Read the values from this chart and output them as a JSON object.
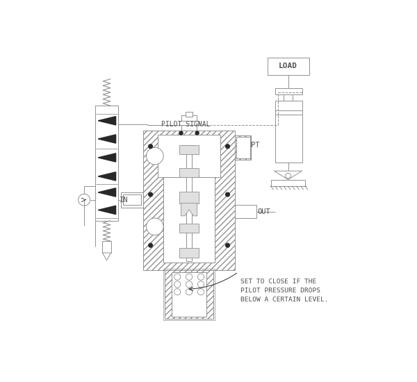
{
  "bg_color": "#ffffff",
  "line_color": "#909090",
  "dark_color": "#282828",
  "fill_white": "#ffffff",
  "fill_hatch": "#ffffff",
  "text_color": "#505050",
  "figsize": [
    6.0,
    5.5
  ],
  "dpi": 100,
  "pilot_signal_text": "PILOT SIGNAL",
  "in_text": "IN",
  "out_text": "OUT",
  "pt_text": "PT",
  "load_text": "LOAD",
  "annotation_text": "SET TO CLOSE IF THE\nPILOT PRESSURE DROPS\nBELOW A CERTAIN LEVEL."
}
